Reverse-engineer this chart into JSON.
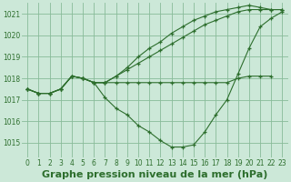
{
  "background_color": "#cce8d8",
  "grid_color": "#88bb99",
  "line_color": "#2d6e2d",
  "title": "Graphe pression niveau de la mer (hPa)",
  "title_fontsize": 8,
  "ylim": [
    1014.3,
    1021.5
  ],
  "xlim": [
    -0.5,
    23.5
  ],
  "yticks": [
    1015,
    1016,
    1017,
    1018,
    1019,
    1020,
    1021
  ],
  "xticks": [
    0,
    1,
    2,
    3,
    4,
    5,
    6,
    7,
    8,
    9,
    10,
    11,
    12,
    13,
    14,
    15,
    16,
    17,
    18,
    19,
    20,
    21,
    22,
    23
  ],
  "lines": [
    {
      "x": [
        0,
        1,
        2,
        3,
        4,
        5,
        6,
        7,
        8,
        9,
        10,
        11,
        12,
        13,
        14,
        15,
        16,
        17,
        18,
        19,
        20,
        21,
        22
      ],
      "y": [
        1017.5,
        1017.3,
        1017.3,
        1017.5,
        1018.1,
        1018.0,
        1017.8,
        1017.8,
        1017.8,
        1017.8,
        1017.8,
        1017.8,
        1017.8,
        1017.8,
        1017.8,
        1017.8,
        1017.8,
        1017.8,
        1017.8,
        1018.0,
        1018.1,
        1018.1,
        1018.1
      ]
    },
    {
      "x": [
        0,
        1,
        2,
        3,
        4,
        5,
        6,
        7,
        8,
        9,
        10,
        11,
        12,
        13,
        14,
        15,
        16,
        17,
        18,
        19,
        20,
        21,
        22,
        23
      ],
      "y": [
        1017.5,
        1017.3,
        1017.3,
        1017.5,
        1018.1,
        1018.0,
        1017.8,
        1017.1,
        1016.6,
        1016.3,
        1015.8,
        1015.5,
        1015.1,
        1014.8,
        1014.8,
        1014.9,
        1015.5,
        1016.3,
        1017.0,
        1018.2,
        1019.4,
        1020.4,
        1020.8,
        1021.1
      ]
    },
    {
      "x": [
        0,
        1,
        2,
        3,
        4,
        5,
        6,
        7,
        8,
        9,
        10,
        11,
        12,
        13,
        14,
        15,
        16,
        17,
        18,
        19,
        20,
        21,
        22,
        23
      ],
      "y": [
        1017.5,
        1017.3,
        1017.3,
        1017.5,
        1018.1,
        1018.0,
        1017.8,
        1017.8,
        1018.1,
        1018.4,
        1018.7,
        1019.0,
        1019.3,
        1019.6,
        1019.9,
        1020.2,
        1020.5,
        1020.7,
        1020.9,
        1021.1,
        1021.2,
        1021.2,
        1021.2,
        1021.2
      ]
    },
    {
      "x": [
        0,
        1,
        2,
        3,
        4,
        5,
        6,
        7,
        8,
        9,
        10,
        11,
        12,
        13,
        14,
        15,
        16,
        17,
        18,
        19,
        20,
        21,
        22,
        23
      ],
      "y": [
        1017.5,
        1017.3,
        1017.3,
        1017.5,
        1018.1,
        1018.0,
        1017.8,
        1017.8,
        1018.1,
        1018.5,
        1019.0,
        1019.4,
        1019.7,
        1020.1,
        1020.4,
        1020.7,
        1020.9,
        1021.1,
        1021.2,
        1021.3,
        1021.4,
        1021.3,
        1021.2,
        1021.2
      ]
    }
  ]
}
